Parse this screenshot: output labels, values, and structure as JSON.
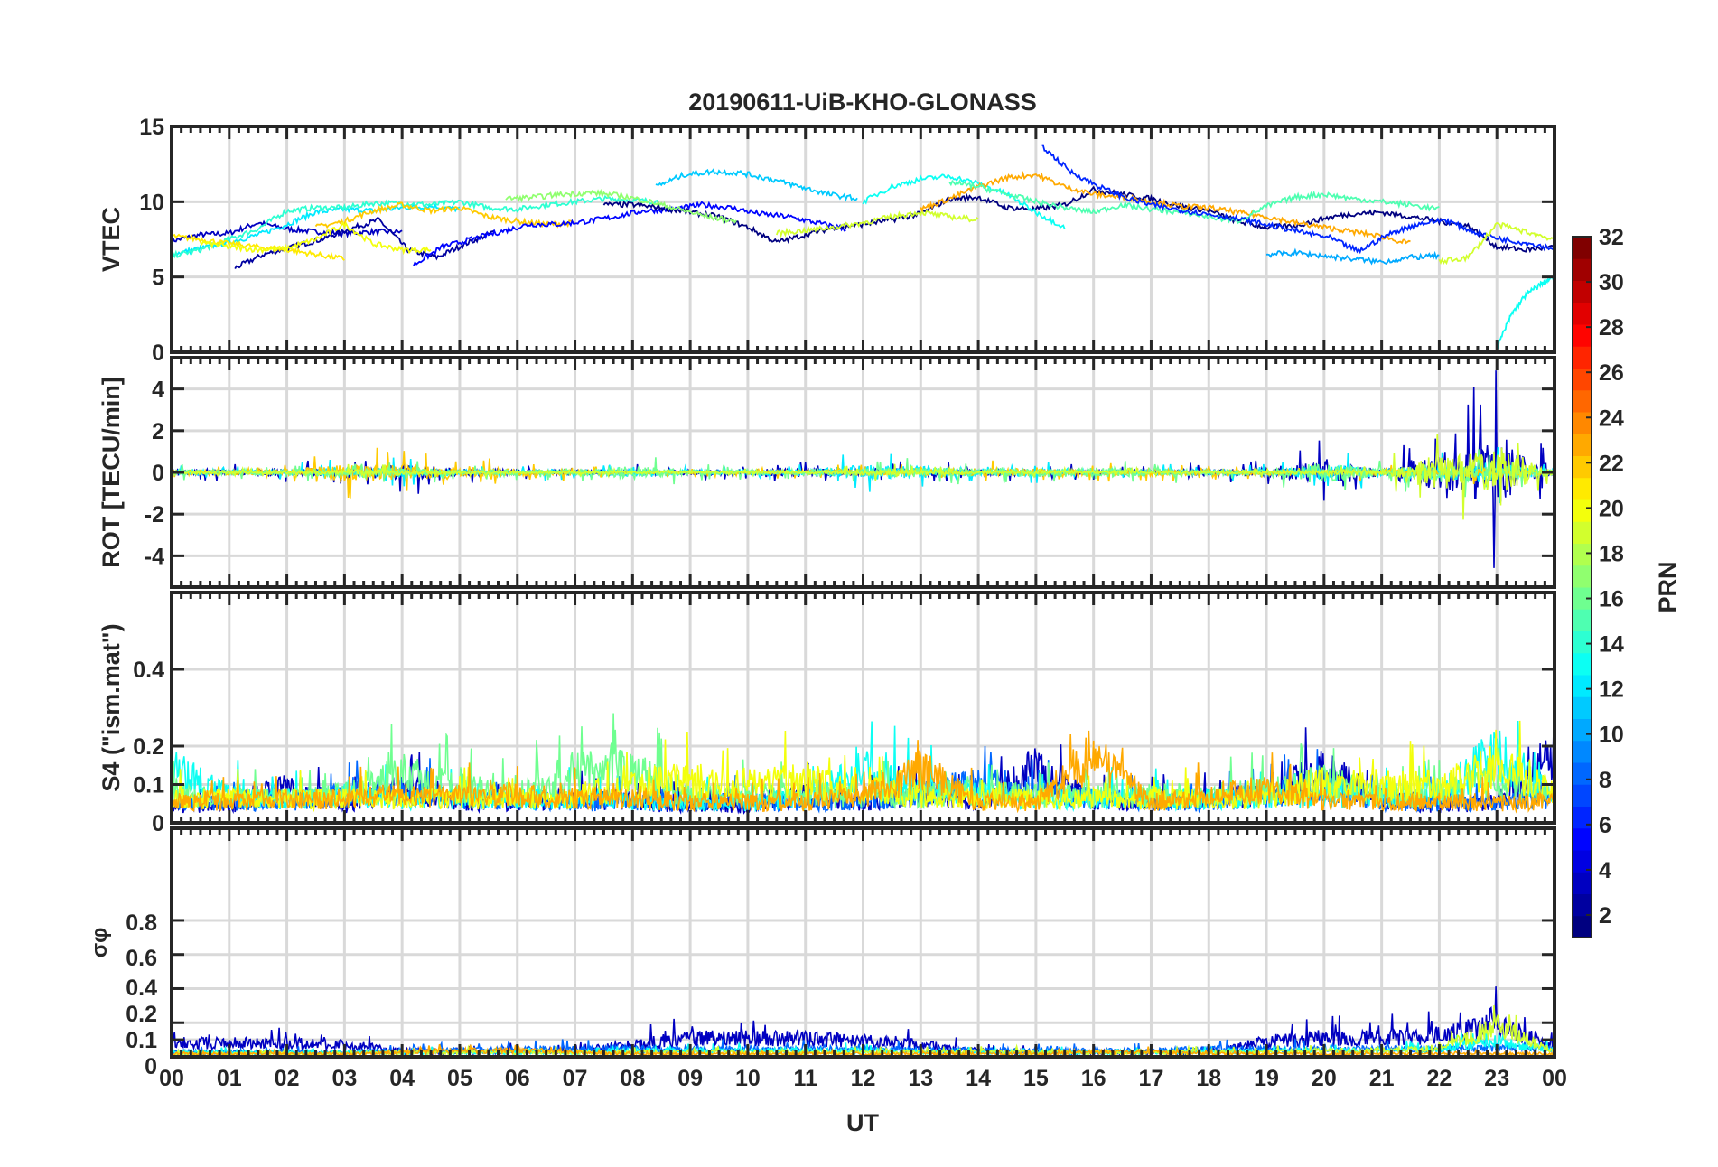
{
  "chart_data": {
    "type": "line",
    "title": "20190611-UiB-KHO-GLONASS",
    "xlabel": "UT",
    "xlim": [
      0,
      24
    ],
    "x_ticks": [
      "00",
      "01",
      "02",
      "03",
      "04",
      "05",
      "06",
      "07",
      "08",
      "09",
      "10",
      "11",
      "12",
      "13",
      "14",
      "15",
      "16",
      "17",
      "18",
      "19",
      "20",
      "21",
      "22",
      "23",
      "00"
    ],
    "colorbar": {
      "label": "PRN",
      "range": [
        1,
        32
      ],
      "ticks": [
        "2",
        "4",
        "6",
        "8",
        "10",
        "12",
        "14",
        "16",
        "18",
        "20",
        "22",
        "24",
        "26",
        "28",
        "30",
        "32"
      ],
      "colormap": "jet"
    },
    "panels": [
      {
        "name": "vtec",
        "ylabel": "VTEC",
        "ylim": [
          0,
          15
        ],
        "ticks": [
          "0",
          "5",
          "10",
          "15"
        ],
        "tick_values": [
          0,
          5,
          10,
          15
        ],
        "grid_values": [
          5,
          10
        ],
        "series": [
          {
            "prn": 3,
            "t0": 0,
            "dt": 0.5,
            "values": [
              7.4,
              7.8,
              7.9,
              8.6,
              8.2,
              8.0,
              7.9,
              8.0,
              8.0
            ]
          },
          {
            "prn": 2,
            "t0": 1.1,
            "dt": 0.5,
            "values": [
              5.6,
              6.5,
              7.0,
              7.5,
              8.2,
              8.8,
              6.8,
              6.3,
              7.2,
              8.0
            ]
          },
          {
            "prn": 12,
            "t0": 0,
            "dt": 0.5,
            "values": [
              6.5,
              6.9,
              7.3,
              7.8,
              8.5,
              9.3,
              9.5,
              9.4,
              9.6,
              9.7,
              9.5
            ]
          },
          {
            "prn": 14,
            "t0": 0,
            "dt": 0.5,
            "values": [
              6.4,
              6.8,
              7.5,
              8.2,
              9.4,
              9.6,
              9.6,
              9.9,
              9.9,
              9.8,
              10.0,
              9.6,
              9.5,
              9.8,
              10.0,
              10.2,
              10.1,
              10.0
            ]
          },
          {
            "prn": 22,
            "t0": 2.5,
            "dt": 0.5,
            "values": [
              8.3,
              8.7,
              9.4,
              9.8,
              9.4,
              9.6,
              9.0,
              8.7,
              8.5,
              8.6
            ]
          },
          {
            "prn": 21,
            "t0": 0,
            "dt": 0.5,
            "values": [
              7.7,
              7.5,
              7.2,
              7.0,
              6.8,
              6.5,
              6.2
            ]
          },
          {
            "prn": 20,
            "t0": 0.5,
            "dt": 0.5,
            "values": [
              7.3,
              7.0,
              6.8,
              6.9,
              7.5,
              8.5,
              7.2,
              6.8,
              6.8
            ]
          },
          {
            "prn": 5,
            "t0": 4.2,
            "dt": 0.5,
            "values": [
              5.8,
              7.0,
              7.5,
              8.0,
              8.5,
              8.5,
              8.7,
              9.0,
              9.4,
              9.5,
              9.8,
              9.6,
              9.2,
              9.0,
              8.6,
              8.2
            ]
          },
          {
            "prn": 1,
            "t0": 7.5,
            "dt": 0.5,
            "values": [
              9.8,
              9.8,
              9.6,
              9.3,
              9.0,
              8.3,
              7.3,
              7.8,
              8.3,
              8.5,
              8.8,
              9.2,
              10.2,
              10.3,
              9.6,
              9.5,
              9.8,
              10.8,
              10.5,
              10.2,
              9.7,
              9.4,
              8.7,
              8.3,
              8.4,
              8.9,
              9.2,
              9.3,
              9.0,
              8.7,
              8.4,
              7.0,
              6.8,
              7.0,
              6.5,
              6.4,
              6.5,
              8.5,
              10.5,
              9.0,
              8.9,
              8.6,
              8.4
            ]
          },
          {
            "prn": 11,
            "t0": 8.4,
            "dt": 0.5,
            "values": [
              11.0,
              11.8,
              12.0,
              11.9,
              11.5,
              11.0,
              10.5,
              10.2
            ]
          },
          {
            "prn": 17,
            "t0": 5.8,
            "dt": 0.5,
            "values": [
              10.2,
              10.3,
              10.5,
              10.6,
              10.4,
              10.0,
              9.5,
              9.0,
              8.7
            ]
          },
          {
            "prn": 19,
            "t0": 10.5,
            "dt": 0.5,
            "values": [
              7.9,
              8.1,
              8.3,
              8.6,
              9.0,
              9.3,
              9.0,
              8.8
            ]
          },
          {
            "prn": 13,
            "t0": 12.0,
            "dt": 0.5,
            "values": [
              10.0,
              11.0,
              11.5,
              11.7,
              11.2,
              10.5,
              9.3,
              8.3
            ]
          },
          {
            "prn": 23,
            "t0": 13.0,
            "dt": 0.5,
            "values": [
              9.5,
              10.2,
              11.0,
              11.6,
              11.8,
              11.0,
              10.5,
              10.3,
              10.0,
              9.7,
              9.6,
              9.3,
              9.0,
              8.6,
              8.3,
              8.0,
              7.7,
              7.2
            ]
          },
          {
            "prn": 15,
            "t0": 13.5,
            "dt": 0.5,
            "values": [
              11.3,
              11.0,
              10.5,
              10.0,
              9.6,
              9.3,
              9.8,
              9.5,
              9.3,
              9.0,
              8.7,
              9.7,
              10.3,
              10.5,
              10.2,
              10.0,
              9.8,
              9.5
            ]
          },
          {
            "prn": 6,
            "t0": 15.1,
            "dt": 0.5,
            "values": [
              13.7,
              12.0,
              11.0,
              10.2,
              9.7,
              9.4,
              9.1,
              8.8,
              8.4,
              8.0,
              7.6,
              6.7,
              7.8,
              8.5,
              8.8,
              8.0,
              7.5,
              7.2,
              6.8,
              6.5,
              6.0
            ]
          },
          {
            "prn": 13,
            "t0": 23.0,
            "dt": 0.25,
            "values": [
              0.3,
              2.5,
              3.8,
              4.5,
              5.0
            ]
          },
          {
            "prn": 19,
            "t0": 22.0,
            "dt": 0.5,
            "values": [
              6.0,
              6.3,
              8.5,
              8.0,
              7.5
            ]
          },
          {
            "prn": 10,
            "t0": 19.0,
            "dt": 0.5,
            "values": [
              6.5,
              6.6,
              6.4,
              6.2,
              6.0,
              6.3,
              6.4
            ]
          }
        ]
      },
      {
        "name": "rot",
        "ylabel": "ROT [TECU/min]",
        "ylim": [
          -5.5,
          5.5
        ],
        "ticks": [
          "-4",
          "-2",
          "0",
          "2",
          "4"
        ],
        "tick_values": [
          -4,
          -2,
          0,
          2,
          4
        ],
        "grid_values": [
          -4,
          -2,
          0,
          2,
          4
        ],
        "amplitude_by_hour": [
          {
            "prn": 3,
            "values": [
              0.2,
              0.2,
              0.3,
              0.3,
              0.6,
              0.3,
              0.2,
              0.2,
              0.2,
              0.2,
              0.2,
              0.4,
              0.3,
              0.3,
              0.2,
              0.2,
              0.2,
              0.2,
              0.3,
              0.3,
              0.9,
              0.3,
              1.5,
              2.5,
              0.2
            ]
          },
          {
            "prn": 12,
            "values": [
              0.2,
              0.2,
              0.2,
              0.4,
              0.4,
              0.2,
              0.2,
              0.2,
              0.3,
              0.2,
              0.2,
              0.2,
              0.6,
              0.5,
              0.3,
              0.3,
              0.2,
              0.2,
              0.2,
              0.2,
              0.6,
              0.3,
              0.5,
              0.8,
              0.2
            ]
          },
          {
            "prn": 22,
            "values": [
              0.2,
              0.2,
              0.2,
              0.7,
              0.6,
              0.4,
              0.3,
              0.2,
              0.1,
              0.1,
              0.1,
              0.2,
              0.2,
              0.2,
              0.3,
              0.3,
              0.2,
              0.3,
              0.2,
              0.2,
              0.2,
              0.2,
              0.3,
              0.3,
              0.1
            ]
          },
          {
            "prn": 16,
            "values": [
              0.2,
              0.2,
              0.2,
              0.3,
              0.3,
              0.2,
              0.2,
              0.2,
              0.5,
              0.2,
              0.2,
              0.2,
              0.3,
              0.4,
              0.3,
              0.3,
              0.4,
              0.3,
              0.2,
              0.2,
              0.8,
              0.3,
              0.8,
              0.5,
              0.2
            ]
          },
          {
            "prn": 19,
            "values": [
              0.1,
              0.1,
              0.1,
              0.2,
              0.2,
              0.1,
              0.1,
              0.1,
              0.1,
              0.1,
              0.1,
              0.1,
              0.2,
              0.2,
              0.1,
              0.1,
              0.1,
              0.1,
              0.1,
              0.1,
              0.2,
              0.2,
              1.5,
              1.8,
              0.2
            ]
          }
        ]
      },
      {
        "name": "s4",
        "ylabel": "S4 (\"ism.mat\")",
        "ylim": [
          0,
          0.6
        ],
        "ticks": [
          "0",
          "0.1",
          "0.2",
          "0.4"
        ],
        "tick_values": [
          0,
          0.1,
          0.2,
          0.4
        ],
        "grid_values": [
          0.1,
          0.2,
          0.4
        ],
        "level_by_hour": [
          {
            "prn": 3,
            "values": [
              0.05,
              0.05,
              0.1,
              0.05,
              0.1,
              0.06,
              0.06,
              0.07,
              0.06,
              0.05,
              0.05,
              0.08,
              0.06,
              0.08,
              0.06,
              0.15,
              0.06,
              0.06,
              0.07,
              0.08,
              0.15,
              0.07,
              0.05,
              0.06,
              0.2
            ]
          },
          {
            "prn": 8,
            "values": [
              0.06,
              0.06,
              0.06,
              0.08,
              0.09,
              0.07,
              0.06,
              0.06,
              0.06,
              0.06,
              0.06,
              0.06,
              0.06,
              0.08,
              0.12,
              0.09,
              0.07,
              0.06,
              0.06,
              0.08,
              0.1,
              0.06,
              0.06,
              0.06,
              0.07
            ]
          },
          {
            "prn": 13,
            "values": [
              0.15,
              0.08,
              0.07,
              0.08,
              0.07,
              0.07,
              0.07,
              0.07,
              0.06,
              0.06,
              0.06,
              0.07,
              0.15,
              0.1,
              0.08,
              0.07,
              0.07,
              0.07,
              0.07,
              0.07,
              0.08,
              0.07,
              0.08,
              0.2,
              0.08
            ]
          },
          {
            "prn": 16,
            "values": [
              0.08,
              0.07,
              0.07,
              0.08,
              0.14,
              0.1,
              0.08,
              0.15,
              0.15,
              0.08,
              0.08,
              0.08,
              0.08,
              0.08,
              0.09,
              0.08,
              0.08,
              0.08,
              0.08,
              0.09,
              0.12,
              0.08,
              0.08,
              0.12,
              0.08
            ]
          },
          {
            "prn": 20,
            "values": [
              0.07,
              0.07,
              0.07,
              0.07,
              0.07,
              0.07,
              0.07,
              0.07,
              0.12,
              0.12,
              0.11,
              0.12,
              0.1,
              0.08,
              0.07,
              0.07,
              0.07,
              0.07,
              0.07,
              0.07,
              0.12,
              0.1,
              0.11,
              0.16,
              0.09
            ]
          },
          {
            "prn": 23,
            "values": [
              0.06,
              0.06,
              0.07,
              0.07,
              0.08,
              0.08,
              0.08,
              0.07,
              0.07,
              0.06,
              0.06,
              0.06,
              0.08,
              0.15,
              0.06,
              0.06,
              0.2,
              0.06,
              0.08,
              0.1,
              0.06,
              0.06,
              0.06,
              0.06,
              0.06
            ]
          }
        ]
      },
      {
        "name": "sigma",
        "ylabel": "σφ",
        "ylim": [
          0,
          1.34
        ],
        "ticks": [
          "0",
          "0.1",
          "0.2",
          "0.4",
          "0.6",
          "0.8"
        ],
        "tick_values": [
          0,
          0.1,
          0.2,
          0.4,
          0.6,
          0.8
        ],
        "grid_values": [
          0.1,
          0.2,
          0.4,
          0.6,
          0.8
        ],
        "level_by_hour": [
          {
            "prn": 3,
            "values": [
              0.09,
              0.09,
              0.09,
              0.08,
              0.04,
              0.03,
              0.04,
              0.04,
              0.08,
              0.12,
              0.12,
              0.12,
              0.1,
              0.08,
              0.04,
              0.03,
              0.03,
              0.03,
              0.03,
              0.1,
              0.12,
              0.12,
              0.14,
              0.2,
              0.07
            ]
          },
          {
            "prn": 8,
            "values": [
              0.03,
              0.03,
              0.03,
              0.03,
              0.04,
              0.04,
              0.05,
              0.05,
              0.05,
              0.05,
              0.05,
              0.05,
              0.05,
              0.05,
              0.04,
              0.04,
              0.04,
              0.04,
              0.05,
              0.05,
              0.05,
              0.05,
              0.05,
              0.06,
              0.05
            ]
          },
          {
            "prn": 13,
            "values": [
              0.03,
              0.03,
              0.03,
              0.03,
              0.03,
              0.03,
              0.03,
              0.03,
              0.04,
              0.04,
              0.04,
              0.04,
              0.04,
              0.03,
              0.03,
              0.03,
              0.03,
              0.03,
              0.03,
              0.04,
              0.04,
              0.04,
              0.05,
              0.1,
              0.04
            ]
          },
          {
            "prn": 19,
            "values": [
              0.02,
              0.02,
              0.02,
              0.02,
              0.03,
              0.03,
              0.03,
              0.03,
              0.03,
              0.03,
              0.03,
              0.03,
              0.03,
              0.03,
              0.03,
              0.03,
              0.03,
              0.03,
              0.03,
              0.03,
              0.04,
              0.04,
              0.05,
              0.2,
              0.04
            ]
          },
          {
            "prn": 23,
            "values": [
              0.02,
              0.02,
              0.02,
              0.02,
              0.03,
              0.04,
              0.04,
              0.03,
              0.02,
              0.02,
              0.02,
              0.02,
              0.02,
              0.02,
              0.02,
              0.02,
              0.03,
              0.03,
              0.02,
              0.02,
              0.02,
              0.02,
              0.02,
              0.02,
              0.02
            ]
          }
        ]
      }
    ]
  }
}
